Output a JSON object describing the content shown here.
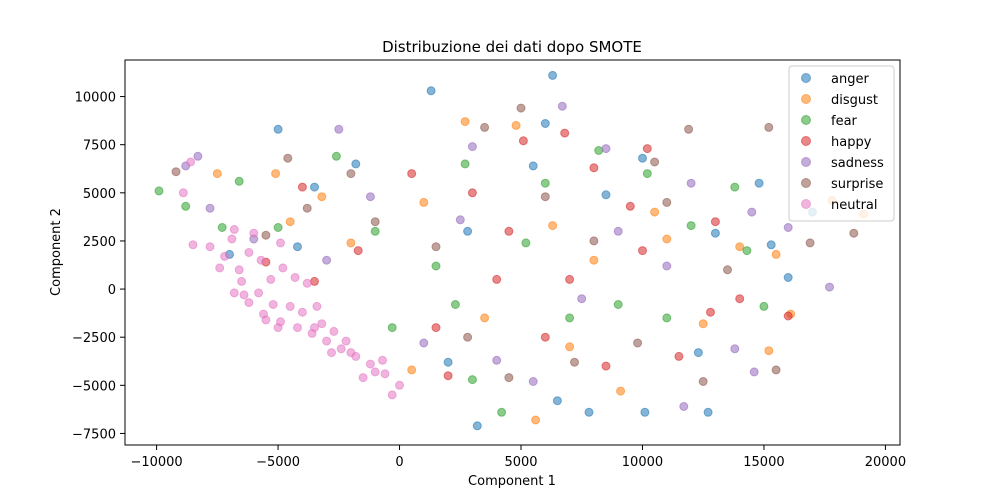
{
  "chart_data": {
    "type": "scatter",
    "title": "Distribuzione dei dati dopo SMOTE",
    "xlabel": "Component 1",
    "ylabel": "Component 2",
    "xlim": [
      -11300,
      20600
    ],
    "ylim": [
      -8100,
      11900
    ],
    "xticks": [
      -10000,
      -5000,
      0,
      5000,
      10000,
      15000,
      20000
    ],
    "xtick_labels": [
      "−10000",
      "−5000",
      "0",
      "5000",
      "10000",
      "15000",
      "20000"
    ],
    "yticks": [
      -7500,
      -5000,
      -2500,
      0,
      2500,
      5000,
      7500,
      10000
    ],
    "ytick_labels": [
      "−7500",
      "−5000",
      "−2500",
      "0",
      "2500",
      "5000",
      "7500",
      "10000"
    ],
    "grid": false,
    "legend_position": "top-right",
    "marker_alpha": 0.55,
    "series": [
      {
        "name": "anger",
        "color": "#1f77b4",
        "points": [
          [
            -5000,
            8300
          ],
          [
            1300,
            10300
          ],
          [
            6300,
            11100
          ],
          [
            6000,
            8600
          ],
          [
            3200,
            -7100
          ],
          [
            -3500,
            5300
          ],
          [
            14800,
            5500
          ],
          [
            17000,
            4000
          ],
          [
            15300,
            2300
          ],
          [
            12700,
            -6400
          ],
          [
            10100,
            -6400
          ],
          [
            7800,
            -6400
          ],
          [
            12300,
            -3300
          ],
          [
            8500,
            4900
          ],
          [
            2800,
            3000
          ],
          [
            -1800,
            6500
          ],
          [
            5500,
            6400
          ],
          [
            10000,
            6800
          ],
          [
            16000,
            600
          ],
          [
            -4200,
            2200
          ],
          [
            2000,
            -3800
          ],
          [
            6500,
            -5800
          ],
          [
            -7000,
            1800
          ],
          [
            13000,
            2900
          ]
        ]
      },
      {
        "name": "disgust",
        "color": "#ff7f0e",
        "points": [
          [
            19100,
            3900
          ],
          [
            17800,
            4600
          ],
          [
            15200,
            -3200
          ],
          [
            16100,
            -1300
          ],
          [
            11000,
            2600
          ],
          [
            9100,
            -5300
          ],
          [
            5600,
            -6800
          ],
          [
            2700,
            8700
          ],
          [
            4800,
            8500
          ],
          [
            -3200,
            4800
          ],
          [
            -5100,
            6000
          ],
          [
            -7500,
            6000
          ],
          [
            10500,
            4000
          ],
          [
            14000,
            2200
          ],
          [
            -4500,
            3500
          ],
          [
            7000,
            -3000
          ],
          [
            3500,
            -1500
          ],
          [
            15500,
            1800
          ],
          [
            1000,
            4500
          ],
          [
            -2000,
            2400
          ],
          [
            12500,
            -1800
          ],
          [
            8000,
            1500
          ],
          [
            500,
            -4200
          ],
          [
            6300,
            3300
          ]
        ]
      },
      {
        "name": "fear",
        "color": "#2ca02c",
        "points": [
          [
            -9900,
            5100
          ],
          [
            -8800,
            4300
          ],
          [
            4200,
            -6400
          ],
          [
            2700,
            6500
          ],
          [
            8200,
            7200
          ],
          [
            13800,
            5300
          ],
          [
            15000,
            -900
          ],
          [
            -6600,
            5600
          ],
          [
            -2600,
            6900
          ],
          [
            6000,
            5500
          ],
          [
            9000,
            -800
          ],
          [
            11000,
            -1500
          ],
          [
            3000,
            -4700
          ],
          [
            -1000,
            3000
          ],
          [
            -5000,
            3200
          ],
          [
            12000,
            3300
          ],
          [
            7000,
            -1500
          ],
          [
            1500,
            1200
          ],
          [
            -300,
            -2000
          ],
          [
            5200,
            2400
          ],
          [
            14300,
            2000
          ],
          [
            -7300,
            3200
          ],
          [
            10200,
            6000
          ],
          [
            2300,
            -800
          ]
        ]
      },
      {
        "name": "happy",
        "color": "#d62728",
        "points": [
          [
            6800,
            8100
          ],
          [
            10200,
            7300
          ],
          [
            5100,
            7700
          ],
          [
            12800,
            -1200
          ],
          [
            14000,
            -500
          ],
          [
            -4000,
            5300
          ],
          [
            8500,
            -4000
          ],
          [
            1500,
            -2000
          ],
          [
            4500,
            3000
          ],
          [
            -1700,
            2000
          ],
          [
            7000,
            500
          ],
          [
            10000,
            2000
          ],
          [
            3000,
            5000
          ],
          [
            -3500,
            400
          ],
          [
            11500,
            -3500
          ],
          [
            6000,
            -2500
          ],
          [
            2000,
            -4500
          ],
          [
            9500,
            4300
          ],
          [
            -5500,
            1400
          ],
          [
            13000,
            3500
          ],
          [
            500,
            6000
          ],
          [
            8000,
            6300
          ],
          [
            16000,
            -1400
          ],
          [
            4000,
            500
          ]
        ]
      },
      {
        "name": "sadness",
        "color": "#9467bd",
        "points": [
          [
            -8300,
            6900
          ],
          [
            -8800,
            6400
          ],
          [
            -2500,
            8300
          ],
          [
            6700,
            9500
          ],
          [
            17700,
            100
          ],
          [
            11700,
            -6100
          ],
          [
            14600,
            -4300
          ],
          [
            13800,
            -3100
          ],
          [
            12000,
            5500
          ],
          [
            -7800,
            4200
          ],
          [
            9000,
            3000
          ],
          [
            3000,
            7400
          ],
          [
            -3000,
            1500
          ],
          [
            4000,
            -3700
          ],
          [
            7500,
            -500
          ],
          [
            11000,
            1200
          ],
          [
            14500,
            4000
          ],
          [
            -1200,
            4800
          ],
          [
            5500,
            -4800
          ],
          [
            1000,
            -2800
          ],
          [
            8500,
            7300
          ],
          [
            16000,
            3200
          ],
          [
            -6000,
            2600
          ],
          [
            2500,
            3600
          ]
        ]
      },
      {
        "name": "surprise",
        "color": "#8c564b",
        "points": [
          [
            -9200,
            6100
          ],
          [
            5000,
            9400
          ],
          [
            11900,
            8300
          ],
          [
            15200,
            8400
          ],
          [
            18700,
            2900
          ],
          [
            16900,
            2400
          ],
          [
            10500,
            6600
          ],
          [
            -4600,
            6800
          ],
          [
            3500,
            8400
          ],
          [
            -2000,
            6000
          ],
          [
            8000,
            2500
          ],
          [
            12500,
            -4800
          ],
          [
            6000,
            4800
          ],
          [
            1500,
            2200
          ],
          [
            -3800,
            4200
          ],
          [
            9800,
            -2800
          ],
          [
            4500,
            -4600
          ],
          [
            13500,
            1000
          ],
          [
            -1000,
            3500
          ],
          [
            7200,
            -3800
          ],
          [
            2800,
            -2500
          ],
          [
            -5500,
            2800
          ],
          [
            11000,
            4500
          ],
          [
            15500,
            -4200
          ]
        ]
      },
      {
        "name": "neutral",
        "color": "#e377c2",
        "points": [
          [
            -8900,
            5000
          ],
          [
            -8600,
            6600
          ],
          [
            -8500,
            2300
          ],
          [
            -7400,
            1100
          ],
          [
            -6800,
            -200
          ],
          [
            -6200,
            -700
          ],
          [
            -5600,
            -1300
          ],
          [
            -4900,
            -1700
          ],
          [
            -4200,
            -2000
          ],
          [
            -3600,
            -2300
          ],
          [
            -3000,
            -2700
          ],
          [
            -2400,
            -3100
          ],
          [
            -1800,
            -3500
          ],
          [
            -1200,
            -3900
          ],
          [
            -600,
            -4400
          ],
          [
            0,
            -5000
          ],
          [
            -300,
            -5500
          ],
          [
            -1000,
            -4300
          ],
          [
            -2000,
            -3300
          ],
          [
            -3500,
            -2000
          ],
          [
            -5200,
            -800
          ],
          [
            -6500,
            400
          ],
          [
            -7200,
            1700
          ],
          [
            -6000,
            2900
          ],
          [
            -4800,
            1100
          ],
          [
            -3800,
            300
          ],
          [
            -5800,
            -200
          ],
          [
            -6600,
            1000
          ],
          [
            -4500,
            -900
          ],
          [
            -2700,
            -2200
          ],
          [
            -6900,
            2600
          ],
          [
            -5300,
            500
          ],
          [
            -7800,
            2200
          ],
          [
            -6200,
            1900
          ],
          [
            -4900,
            2400
          ],
          [
            -6400,
            -300
          ],
          [
            -5000,
            -2000
          ],
          [
            -4000,
            -1200
          ],
          [
            -3200,
            -1800
          ],
          [
            -2200,
            -2700
          ],
          [
            -1500,
            -4600
          ],
          [
            -700,
            -3700
          ],
          [
            -5700,
            1500
          ],
          [
            -6800,
            3100
          ],
          [
            -4300,
            600
          ],
          [
            -3400,
            -900
          ],
          [
            -5500,
            -1600
          ],
          [
            -2800,
            -3300
          ]
        ]
      }
    ]
  }
}
